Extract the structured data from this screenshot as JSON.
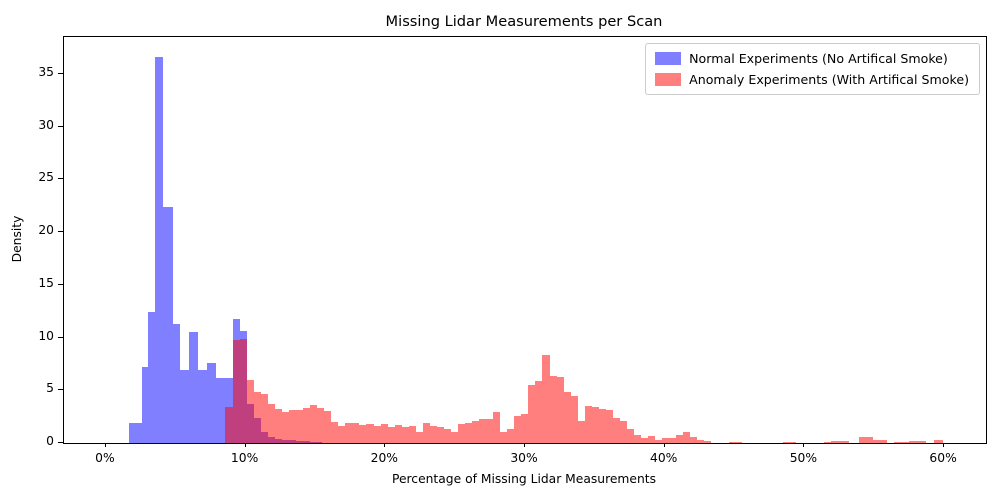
{
  "chart_data": {
    "type": "bar",
    "subtype": "overlapping-density-histograms",
    "title": "Missing Lidar Measurements per Scan",
    "xlabel": "Percentage of Missing Lidar Measurements",
    "ylabel": "Density",
    "xlim": [
      -3,
      63
    ],
    "ylim": [
      0,
      38.5
    ],
    "grid": false,
    "legend_position": "upper right",
    "x_tick_values": [
      0,
      10,
      20,
      30,
      40,
      50,
      60
    ],
    "x_tick_labels": [
      "0%",
      "10%",
      "20%",
      "30%",
      "40%",
      "50%",
      "60%"
    ],
    "y_tick_values": [
      0,
      5,
      10,
      15,
      20,
      25,
      30,
      35
    ],
    "y_tick_labels": [
      "0",
      "5",
      "10",
      "15",
      "20",
      "25",
      "30",
      "35"
    ],
    "series": [
      {
        "name": "Normal Experiments (No Artifical Smoke)",
        "color": "#7f7fff",
        "fill": "rgba(0,0,255,0.5)",
        "bars_format": "[x_start_percent, x_end_percent, density]",
        "bars": [
          [
            1.66,
            2.6,
            1.9
          ],
          [
            2.6,
            3.02,
            7.2
          ],
          [
            3.02,
            3.54,
            12.45
          ],
          [
            3.54,
            4.11,
            36.6
          ],
          [
            4.11,
            4.77,
            22.4
          ],
          [
            4.77,
            5.27,
            11.3
          ],
          [
            5.27,
            5.92,
            6.9
          ],
          [
            5.92,
            6.57,
            10.5
          ],
          [
            6.57,
            7.22,
            6.9
          ],
          [
            7.22,
            7.87,
            7.6
          ],
          [
            7.87,
            8.47,
            6.2
          ],
          [
            8.47,
            9.07,
            6.2
          ],
          [
            9.07,
            9.58,
            11.8
          ],
          [
            9.58,
            10.08,
            10.6
          ],
          [
            10.08,
            10.59,
            3.7
          ],
          [
            10.59,
            11.09,
            2.4
          ],
          [
            11.09,
            11.59,
            1.0
          ],
          [
            11.59,
            12.09,
            0.6
          ],
          [
            12.09,
            12.59,
            0.4
          ],
          [
            12.59,
            13.09,
            0.3
          ],
          [
            13.09,
            13.59,
            0.25
          ],
          [
            13.59,
            14.09,
            0.2
          ],
          [
            14.09,
            14.59,
            0.15
          ],
          [
            14.59,
            15.45,
            0.1
          ]
        ]
      },
      {
        "name": "Anomaly Experiments (With Artifical Smoke)",
        "color": "#ff7f7f",
        "fill": "rgba(255,0,0,0.5)",
        "bars_format": "[x_start_percent, x_end_percent, density]",
        "bars": [
          [
            8.55,
            9.07,
            3.4
          ],
          [
            9.07,
            9.58,
            9.8
          ],
          [
            9.58,
            10.08,
            9.9
          ],
          [
            10.08,
            10.59,
            6.0
          ],
          [
            10.59,
            11.09,
            4.8
          ],
          [
            11.09,
            11.6,
            4.6
          ],
          [
            11.6,
            12.1,
            3.7
          ],
          [
            12.1,
            12.6,
            3.2
          ],
          [
            12.6,
            13.11,
            2.95
          ],
          [
            13.11,
            13.61,
            3.1
          ],
          [
            13.61,
            14.12,
            3.15
          ],
          [
            14.12,
            14.62,
            3.3
          ],
          [
            14.62,
            15.12,
            3.6
          ],
          [
            15.12,
            15.63,
            3.3
          ],
          [
            15.63,
            16.13,
            3.05
          ],
          [
            16.13,
            16.64,
            2.0
          ],
          [
            16.64,
            17.14,
            1.6
          ],
          [
            17.14,
            17.64,
            1.9
          ],
          [
            17.64,
            18.15,
            1.9
          ],
          [
            18.15,
            18.65,
            1.7
          ],
          [
            18.65,
            19.16,
            1.8
          ],
          [
            19.16,
            19.66,
            1.65
          ],
          [
            19.66,
            20.16,
            1.8
          ],
          [
            20.16,
            20.67,
            1.55
          ],
          [
            20.67,
            21.17,
            1.7
          ],
          [
            21.17,
            21.68,
            1.55
          ],
          [
            21.68,
            22.18,
            1.6
          ],
          [
            22.18,
            22.68,
            1.0
          ],
          [
            22.68,
            23.19,
            1.85
          ],
          [
            23.19,
            23.69,
            1.65
          ],
          [
            23.69,
            24.2,
            1.55
          ],
          [
            24.2,
            24.7,
            1.3
          ],
          [
            24.7,
            25.2,
            1.0
          ],
          [
            25.2,
            25.71,
            1.8
          ],
          [
            25.71,
            26.21,
            1.85
          ],
          [
            26.21,
            26.72,
            2.05
          ],
          [
            26.72,
            27.22,
            2.3
          ],
          [
            27.22,
            27.72,
            2.3
          ],
          [
            27.72,
            28.23,
            2.95
          ],
          [
            28.23,
            28.73,
            1.05
          ],
          [
            28.73,
            29.24,
            1.3
          ],
          [
            29.24,
            29.74,
            2.55
          ],
          [
            29.74,
            30.25,
            2.75
          ],
          [
            30.25,
            30.75,
            5.5
          ],
          [
            30.75,
            31.25,
            5.9
          ],
          [
            31.25,
            31.76,
            8.3
          ],
          [
            31.76,
            32.26,
            6.35
          ],
          [
            32.26,
            32.77,
            6.3
          ],
          [
            32.77,
            33.27,
            4.85
          ],
          [
            33.27,
            33.77,
            4.5
          ],
          [
            33.77,
            34.28,
            2.1
          ],
          [
            34.28,
            34.78,
            3.5
          ],
          [
            34.78,
            35.28,
            3.45
          ],
          [
            35.28,
            35.79,
            3.2
          ],
          [
            35.79,
            36.29,
            3.1
          ],
          [
            36.29,
            36.79,
            2.4
          ],
          [
            36.79,
            37.3,
            2.1
          ],
          [
            37.3,
            37.8,
            1.3
          ],
          [
            37.8,
            38.3,
            0.8
          ],
          [
            38.3,
            38.81,
            0.5
          ],
          [
            38.81,
            39.31,
            0.65
          ],
          [
            39.31,
            39.81,
            0.3
          ],
          [
            39.81,
            40.32,
            0.45
          ],
          [
            40.32,
            40.82,
            0.5
          ],
          [
            40.82,
            41.32,
            0.75
          ],
          [
            41.32,
            41.83,
            1.0
          ],
          [
            41.83,
            42.33,
            0.55
          ],
          [
            42.33,
            42.83,
            0.3
          ],
          [
            42.83,
            43.33,
            0.15
          ],
          [
            44.6,
            45.5,
            0.12
          ],
          [
            48.5,
            49.4,
            0.12
          ],
          [
            51.4,
            51.9,
            0.1
          ],
          [
            51.9,
            53.2,
            0.2
          ],
          [
            53.9,
            54.9,
            0.55
          ],
          [
            54.9,
            55.9,
            0.25
          ],
          [
            56.4,
            57.5,
            0.1
          ],
          [
            57.5,
            58.7,
            0.2
          ],
          [
            59.3,
            59.9,
            0.3
          ]
        ]
      }
    ]
  }
}
